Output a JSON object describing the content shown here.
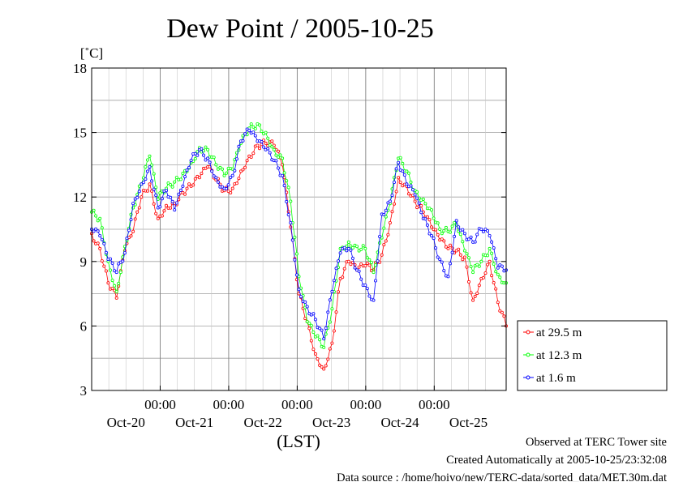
{
  "chart_data": {
    "type": "line",
    "title": "Dew Point / 2005-10-25",
    "ylabel": "[˚C]",
    "xlabel": "(LST)",
    "ylim": [
      3,
      18
    ],
    "yticks": [
      3,
      6,
      9,
      12,
      15,
      18
    ],
    "xlim": [
      0,
      1
    ],
    "time_ticks": [
      "00:00",
      "00:00",
      "00:00",
      "00:00",
      "00:00"
    ],
    "day_labels": [
      "Oct-20",
      "Oct-21",
      "Oct-22",
      "Oct-23",
      "Oct-24",
      "Oct-25"
    ],
    "grid": true,
    "legend_position": "right, lower",
    "x": [
      0.0,
      0.02,
      0.04,
      0.06,
      0.08,
      0.1,
      0.12,
      0.14,
      0.16,
      0.18,
      0.2,
      0.22,
      0.24,
      0.26,
      0.28,
      0.3,
      0.32,
      0.34,
      0.36,
      0.38,
      0.4,
      0.42,
      0.44,
      0.46,
      0.48,
      0.5,
      0.52,
      0.54,
      0.56,
      0.58,
      0.6,
      0.62,
      0.64,
      0.66,
      0.68,
      0.7,
      0.72,
      0.74,
      0.76,
      0.78,
      0.8,
      0.82,
      0.84,
      0.86,
      0.88,
      0.9,
      0.92,
      0.94,
      0.96,
      0.98,
      1.0
    ],
    "series": [
      {
        "name": "at 29.5 m",
        "color": "#ff0000",
        "values": [
          10.3,
          9.6,
          8.0,
          7.3,
          9.5,
          10.4,
          12.0,
          12.6,
          11.0,
          11.6,
          11.7,
          12.2,
          12.5,
          12.9,
          13.4,
          12.8,
          12.3,
          12.4,
          13.2,
          13.9,
          14.4,
          14.5,
          14.4,
          13.5,
          10.6,
          7.5,
          6.2,
          4.7,
          4.0,
          5.2,
          8.2,
          9.0,
          8.6,
          8.8,
          8.6,
          9.3,
          10.8,
          12.9,
          12.5,
          11.8,
          11.3,
          10.6,
          10.0,
          9.6,
          9.5,
          9.2,
          7.2,
          8.2,
          9.0,
          7.1,
          6.0
        ]
      },
      {
        "name": "at 12.3 m",
        "color": "#00ff00",
        "values": [
          11.3,
          11.0,
          9.0,
          7.6,
          9.7,
          11.5,
          12.6,
          13.9,
          11.9,
          12.4,
          12.7,
          13.1,
          13.6,
          14.3,
          14.2,
          13.5,
          13.0,
          13.3,
          14.5,
          15.2,
          15.4,
          15.0,
          14.2,
          13.8,
          11.8,
          8.3,
          6.2,
          5.5,
          5.0,
          6.8,
          9.6,
          9.9,
          9.7,
          9.6,
          8.5,
          10.1,
          11.7,
          13.8,
          13.2,
          12.3,
          11.9,
          11.4,
          10.5,
          10.4,
          10.7,
          9.5,
          8.5,
          9.0,
          9.6,
          8.4,
          8.0
        ]
      },
      {
        "name": "at 1.6 m",
        "color": "#0000ff",
        "values": [
          10.5,
          10.2,
          9.1,
          8.5,
          9.4,
          11.7,
          12.6,
          13.4,
          11.5,
          12.3,
          11.4,
          12.5,
          13.7,
          14.2,
          13.8,
          12.9,
          12.4,
          13.0,
          14.6,
          15.1,
          14.6,
          14.2,
          13.7,
          13.0,
          10.8,
          7.7,
          6.9,
          6.3,
          5.4,
          7.6,
          9.4,
          9.6,
          8.6,
          7.9,
          7.2,
          11.2,
          11.8,
          13.6,
          12.6,
          12.1,
          11.0,
          10.2,
          9.1,
          8.3,
          10.9,
          10.3,
          9.9,
          10.5,
          10.2,
          8.7,
          8.6
        ]
      }
    ]
  },
  "footer": {
    "line1": "Observed at TERC Tower site",
    "line2": "Created Automatically at 2005-10-25/23:32:08",
    "line3": "Data source : /home/hoivo/new/TERC-data/sorted_data/MET.30m.dat"
  }
}
